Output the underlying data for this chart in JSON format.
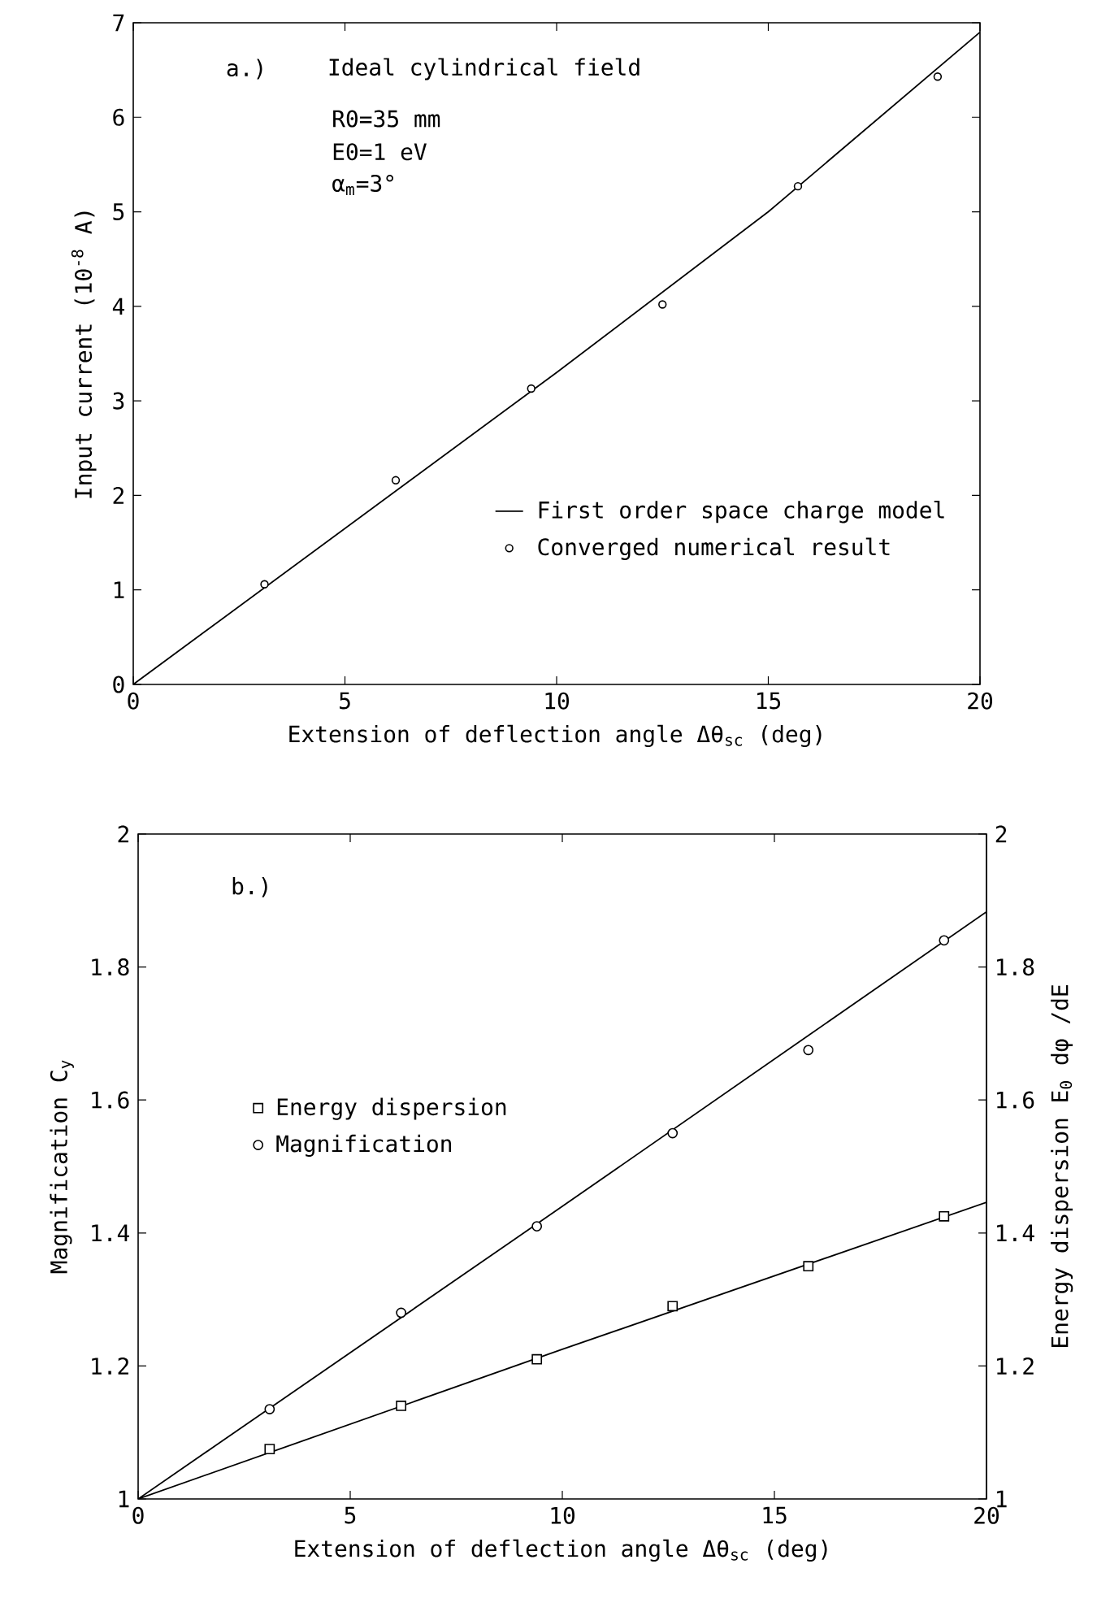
{
  "chart_data": [
    {
      "type": "scatter",
      "xlabel": "Extension of deflection angle Δθ$_{sc}$ (deg)",
      "ylabel": "Input current (10$^{-8}$ A)",
      "xlim": [
        0,
        20
      ],
      "ylim": [
        0,
        7
      ],
      "xticks": [
        0,
        5,
        10,
        15,
        20
      ],
      "yticks": [
        0,
        1,
        2,
        3,
        4,
        5,
        6,
        7
      ],
      "legend": "bottom right",
      "annotations": [
        "a.)",
        "Ideal cylindrical field",
        "R0=35 mm",
        "E0=1 eV",
        "α$_{m}$=3°"
      ],
      "series": [
        {
          "name": "First order space charge model",
          "type": "line",
          "x": [
            0,
            10,
            15,
            20
          ],
          "values": [
            0,
            3.3,
            5.0,
            6.9
          ],
          "color": "#000000",
          "line_style": "solid",
          "marker": "none"
        },
        {
          "name": "Converged numerical result",
          "x": [
            3.1,
            6.2,
            9.4,
            12.5,
            15.7,
            19.0
          ],
          "values": [
            1.06,
            2.16,
            3.13,
            4.02,
            5.27,
            6.43
          ],
          "color": "#000000",
          "marker": "circle"
        }
      ]
    },
    {
      "type": "scatter",
      "xlabel": "Extension of deflection angle Δθ$_{sc}$ (deg)",
      "ylabel": "Magnification C$_{y}$",
      "y2label": "Energy dispersion E$_{0}$ dφ /dE",
      "xlim": [
        0,
        20
      ],
      "ylim": [
        1,
        2
      ],
      "y2lim": [
        1,
        2
      ],
      "xticks": [
        0,
        5,
        10,
        15,
        20
      ],
      "yticks": [
        1,
        1.2,
        1.4,
        1.6,
        1.8,
        2
      ],
      "y2ticks": [
        1,
        1.2,
        1.4,
        1.6,
        1.8,
        2
      ],
      "legend": "left",
      "annotations": [
        "b.)"
      ],
      "series": [
        {
          "type": "line",
          "axis": "y",
          "x": [
            0,
            10,
            20
          ],
          "values": [
            1,
            1.44,
            1.883
          ],
          "color": "#000000",
          "line_style": "solid",
          "marker": "none"
        },
        {
          "type": "line",
          "axis": "y2",
          "x": [
            0,
            10,
            20
          ],
          "values": [
            1,
            1.225,
            1.446
          ],
          "color": "#000000",
          "line_style": "solid",
          "marker": "none"
        },
        {
          "name": "Energy dispersion",
          "axis": "y2",
          "x": [
            3.1,
            6.2,
            9.4,
            12.6,
            15.8,
            19.0
          ],
          "values": [
            1.075,
            1.14,
            1.21,
            1.29,
            1.35,
            1.425
          ],
          "color": "#000000",
          "marker": "square"
        },
        {
          "name": "Magnification",
          "axis": "y",
          "x": [
            3.1,
            6.2,
            9.4,
            12.6,
            15.8,
            19.0
          ],
          "values": [
            1.135,
            1.28,
            1.41,
            1.55,
            1.675,
            1.84
          ],
          "color": "#000000",
          "marker": "circle"
        }
      ]
    }
  ]
}
